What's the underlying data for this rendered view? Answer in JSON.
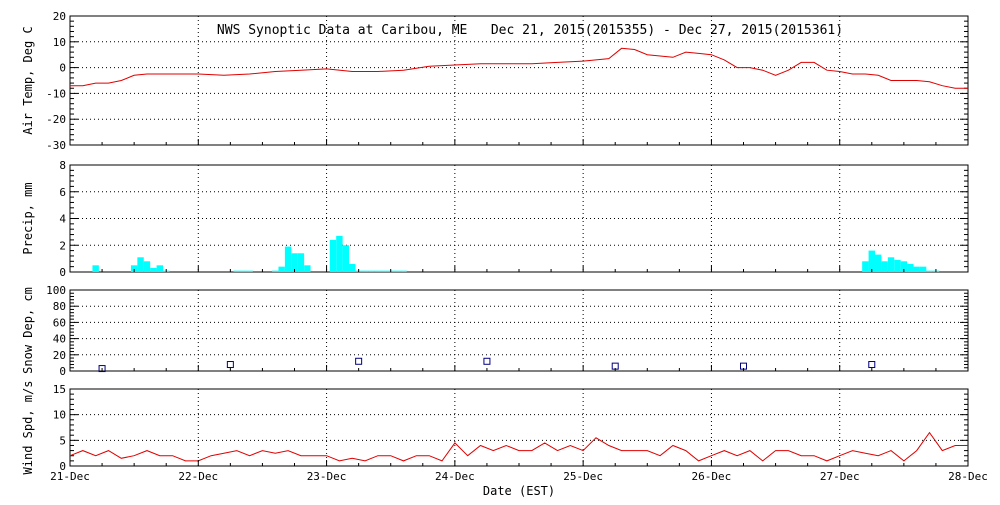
{
  "chart_data": {
    "type": "line",
    "title": "NWS Synoptic Data at Caribou, ME   Dec 21, 2015(2015355) - Dec 27, 2015(2015361)",
    "xlabel": "Date (EST)",
    "x_tick_labels": [
      "21-Dec",
      "22-Dec",
      "23-Dec",
      "24-Dec",
      "25-Dec",
      "26-Dec",
      "27-Dec",
      "28-Dec"
    ],
    "x_range_days": [
      0,
      7
    ],
    "panels": [
      {
        "key": "air_temp",
        "type": "line",
        "ylabel": "Air Temp, Deg C",
        "ylim": [
          -30,
          20
        ],
        "yticks": [
          -30,
          -20,
          -10,
          0,
          10,
          20
        ],
        "series": [
          {
            "color": "#e00000",
            "x": [
              0,
              0.1,
              0.2,
              0.3,
              0.4,
              0.5,
              0.6,
              0.7,
              0.8,
              0.9,
              1.0,
              1.2,
              1.4,
              1.6,
              1.8,
              2.0,
              2.2,
              2.4,
              2.6,
              2.8,
              3.0,
              3.2,
              3.4,
              3.6,
              3.8,
              4.0,
              4.1,
              4.2,
              4.3,
              4.4,
              4.5,
              4.6,
              4.7,
              4.8,
              4.9,
              5.0,
              5.1,
              5.2,
              5.3,
              5.4,
              5.5,
              5.6,
              5.7,
              5.8,
              5.9,
              6.0,
              6.1,
              6.2,
              6.3,
              6.4,
              6.5,
              6.6,
              6.7,
              6.8,
              6.9,
              7.0
            ],
            "values": [
              -7,
              -7,
              -6,
              -6,
              -5,
              -3,
              -2.5,
              -2.5,
              -2.5,
              -2.5,
              -2.5,
              -3,
              -2.5,
              -1.5,
              -1,
              -0.5,
              -1.5,
              -1.5,
              -1,
              0.5,
              1,
              1.5,
              1.5,
              1.5,
              2,
              2.5,
              3,
              3.5,
              7.5,
              7,
              5,
              4.5,
              4,
              6,
              5.5,
              5,
              3,
              0,
              0,
              -1,
              -3,
              -1,
              2,
              2,
              -1,
              -1.5,
              -2.5,
              -2.5,
              -3,
              -5,
              -5,
              -5,
              -5.5,
              -7,
              -8,
              -8
            ]
          }
        ]
      },
      {
        "key": "precip",
        "type": "bar",
        "ylabel": "Precip, mm",
        "ylim": [
          0,
          8
        ],
        "yticks": [
          0,
          2,
          4,
          6,
          8
        ],
        "series": [
          {
            "color": "#00ffff",
            "bar_width_days": 0.05,
            "x": [
              0.2,
              0.5,
              0.55,
              0.6,
              0.65,
              0.7,
              0.75,
              1.3,
              1.35,
              1.4,
              1.6,
              1.65,
              1.7,
              1.75,
              1.8,
              1.85,
              2.05,
              2.1,
              2.15,
              2.2,
              2.25,
              2.3,
              2.35,
              2.4,
              2.45,
              2.5,
              2.55,
              2.6,
              6.2,
              6.25,
              6.3,
              6.35,
              6.4,
              6.45,
              6.5,
              6.55,
              6.6,
              6.65,
              6.7,
              6.75
            ],
            "values": [
              0.5,
              0.5,
              1.1,
              0.8,
              0.3,
              0.5,
              0.1,
              0.1,
              0.1,
              0.1,
              0.1,
              0.4,
              1.9,
              1.4,
              1.4,
              0.5,
              2.4,
              2.7,
              2.0,
              0.6,
              0.1,
              0.1,
              0.1,
              0.1,
              0.1,
              0.1,
              0.1,
              0.1,
              0.8,
              1.6,
              1.3,
              0.8,
              1.1,
              0.9,
              0.8,
              0.6,
              0.4,
              0.4,
              0.1,
              0.1
            ]
          }
        ]
      },
      {
        "key": "snow_depth",
        "type": "scatter",
        "ylabel": "Snow Dep, cm",
        "ylim": [
          0,
          100
        ],
        "yticks": [
          0,
          20,
          40,
          60,
          80,
          100
        ],
        "series": [
          {
            "color": "#000080",
            "marker": "square",
            "x": [
              0.25,
              1.25,
              2.25,
              3.25,
              4.25,
              5.25,
              6.25
            ],
            "values": [
              3,
              8,
              12,
              12,
              6,
              6,
              8
            ]
          }
        ]
      },
      {
        "key": "wind_speed",
        "type": "line",
        "ylabel": "Wind Spd, m/s",
        "ylim": [
          0,
          15
        ],
        "yticks": [
          0,
          5,
          10,
          15
        ],
        "series": [
          {
            "color": "#e00000",
            "x": [
              0,
              0.1,
              0.2,
              0.3,
              0.4,
              0.5,
              0.6,
              0.7,
              0.8,
              0.9,
              1.0,
              1.1,
              1.2,
              1.3,
              1.4,
              1.5,
              1.6,
              1.7,
              1.8,
              1.9,
              2.0,
              2.1,
              2.2,
              2.3,
              2.4,
              2.5,
              2.6,
              2.7,
              2.8,
              2.9,
              3.0,
              3.1,
              3.2,
              3.3,
              3.4,
              3.5,
              3.6,
              3.7,
              3.8,
              3.9,
              4.0,
              4.1,
              4.2,
              4.3,
              4.4,
              4.5,
              4.6,
              4.7,
              4.8,
              4.9,
              5.0,
              5.1,
              5.2,
              5.3,
              5.4,
              5.5,
              5.6,
              5.7,
              5.8,
              5.9,
              6.0,
              6.1,
              6.2,
              6.3,
              6.4,
              6.5,
              6.6,
              6.7,
              6.8,
              6.9,
              7.0
            ],
            "values": [
              2,
              3,
              2,
              3,
              1.5,
              2,
              3,
              2,
              2,
              1,
              1,
              2,
              2.5,
              3,
              2,
              3,
              2.5,
              3,
              2,
              2,
              2,
              1,
              1.5,
              1,
              2,
              2,
              1,
              2,
              2,
              1,
              4.5,
              2,
              4,
              3,
              4,
              3,
              3,
              4.5,
              3,
              4,
              3,
              5.5,
              4,
              3,
              3,
              3,
              2,
              4,
              3,
              1,
              2,
              3,
              2,
              3,
              1,
              3,
              3,
              2,
              2,
              1,
              2,
              3,
              2.5,
              2,
              3,
              1,
              3,
              6.5,
              3,
              4,
              4
            ]
          }
        ]
      }
    ]
  }
}
